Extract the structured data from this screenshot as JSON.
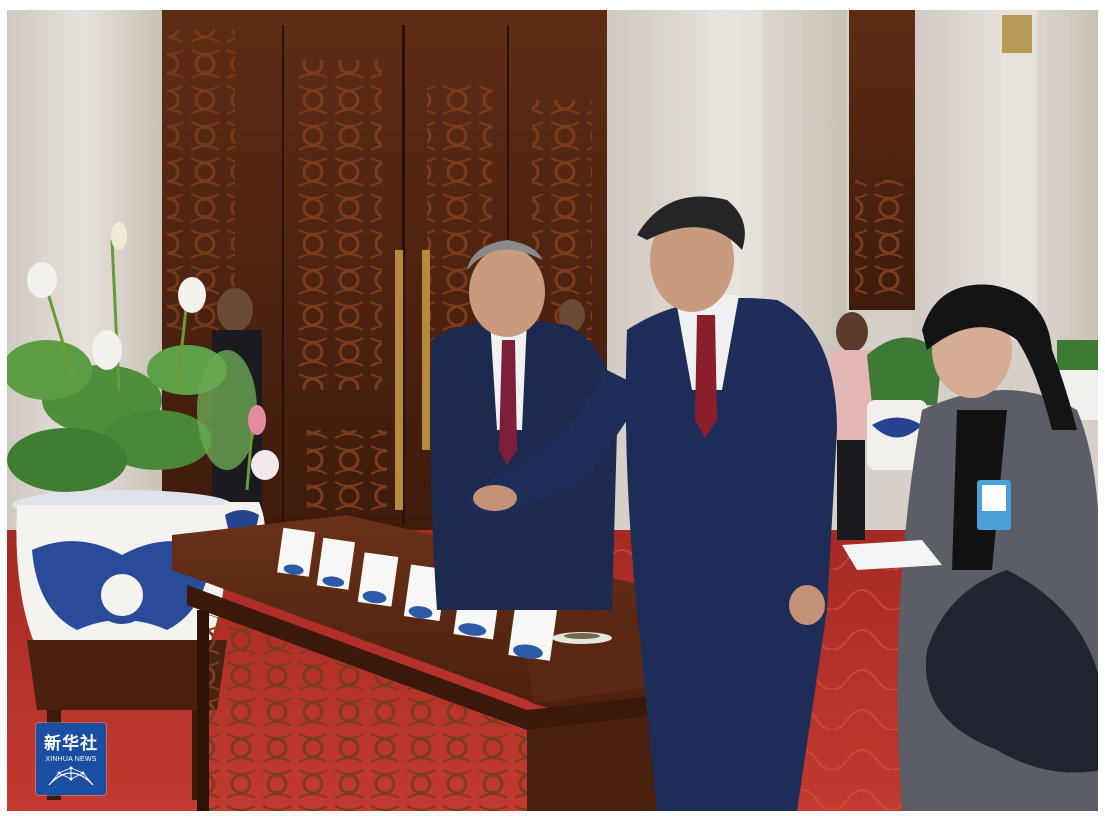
{
  "photo": {
    "description_icon": "photo-icon"
  },
  "watermark": {
    "brand_cn": "新华社",
    "brand_en": "XINHUA NEWS",
    "logo_icon": "globe-network-icon",
    "color": "#1a4ea3"
  },
  "palette": {
    "door_wood": "#5a2a14",
    "marble": "#d9d4cd",
    "carpet": "#b8302a",
    "suit_navy": "#1e2d55",
    "tie_red": "#7e1f2a",
    "porcelain_blue": "#26438f"
  }
}
